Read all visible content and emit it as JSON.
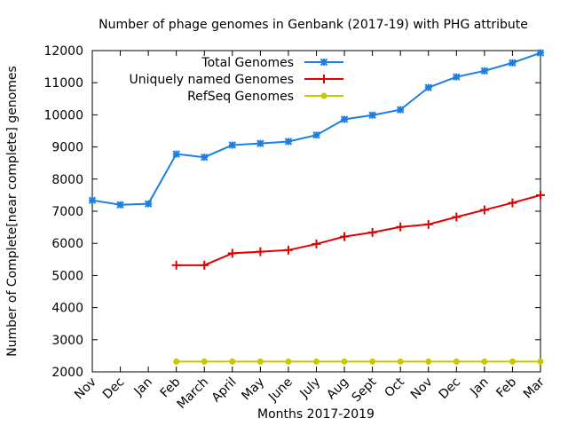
{
  "chart_data": {
    "type": "line",
    "title": "Number of phage genomes in Genbank (2017-19) with PHG attribute",
    "xlabel": "Months 2017-2019",
    "ylabel": "Number of Complete[near complete] genomes",
    "categories": [
      "Nov",
      "Dec",
      "Jan",
      "Feb",
      "March",
      "April",
      "May",
      "June",
      "July",
      "Aug",
      "Sept",
      "Oct",
      "Nov",
      "Dec",
      "Jan",
      "Feb",
      "Mar"
    ],
    "ylim": [
      2000,
      12000
    ],
    "yticks": [
      "2000",
      "3000",
      "4000",
      "5000",
      "6000",
      "7000",
      "8000",
      "9000",
      "10000",
      "11000",
      "12000"
    ],
    "legend_position": "top-center",
    "series": [
      {
        "name": "Total Genomes",
        "color": "#1a7fe0",
        "marker": "star",
        "values": [
          7340,
          7200,
          7230,
          8780,
          8680,
          9060,
          9110,
          9170,
          9370,
          9860,
          9990,
          10160,
          10850,
          11180,
          11370,
          11620,
          11930
        ]
      },
      {
        "name": "Uniquely named Genomes",
        "color": "#e00000",
        "marker": "plus",
        "values": [
          null,
          null,
          null,
          5320,
          5320,
          5690,
          5740,
          5790,
          5980,
          6210,
          6340,
          6510,
          6590,
          6820,
          7040,
          7260,
          7500
        ]
      },
      {
        "name": "RefSeq Genomes",
        "color": "#c8c800",
        "marker": "circle",
        "values": [
          null,
          null,
          null,
          2320,
          2320,
          2320,
          2320,
          2320,
          2320,
          2320,
          2320,
          2320,
          2320,
          2320,
          2320,
          2320,
          2320
        ]
      }
    ]
  }
}
